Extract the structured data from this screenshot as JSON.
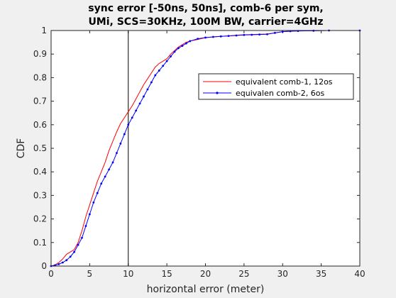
{
  "chart_data": {
    "type": "line",
    "title": "sync error [-50ns, 50ns], comb-6 per sym,",
    "subtitle": "UMi, SCS=30KHz, 100M BW, carrier=4GHz",
    "xlabel": "horizontal error (meter)",
    "ylabel": "CDF",
    "xlim": [
      0,
      40
    ],
    "ylim": [
      0,
      1
    ],
    "xticks": [
      "0",
      "5",
      "10",
      "15",
      "20",
      "25",
      "30",
      "35",
      "40"
    ],
    "yticks": [
      "0",
      "0.1",
      "0.2",
      "0.3",
      "0.4",
      "0.5",
      "0.6",
      "0.7",
      "0.8",
      "0.9",
      "1"
    ],
    "grid": false,
    "legend_position": "center-right",
    "vertical_reference_line": 10,
    "series": [
      {
        "name": "equivalent comb-1, 12os",
        "color": "#ff0000",
        "marker": "none",
        "points": [
          [
            0,
            0
          ],
          [
            0.5,
            0.005
          ],
          [
            1,
            0.015
          ],
          [
            1.5,
            0.03
          ],
          [
            2,
            0.05
          ],
          [
            2.5,
            0.06
          ],
          [
            3,
            0.07
          ],
          [
            3.5,
            0.1
          ],
          [
            4,
            0.15
          ],
          [
            4.5,
            0.21
          ],
          [
            5,
            0.26
          ],
          [
            5.5,
            0.31
          ],
          [
            6,
            0.36
          ],
          [
            6.5,
            0.4
          ],
          [
            7,
            0.44
          ],
          [
            7.5,
            0.49
          ],
          [
            8,
            0.53
          ],
          [
            8.5,
            0.57
          ],
          [
            9,
            0.605
          ],
          [
            9.5,
            0.63
          ],
          [
            10,
            0.655
          ],
          [
            10.5,
            0.68
          ],
          [
            11,
            0.71
          ],
          [
            11.5,
            0.74
          ],
          [
            12,
            0.77
          ],
          [
            12.5,
            0.795
          ],
          [
            13,
            0.82
          ],
          [
            13.5,
            0.845
          ],
          [
            14,
            0.86
          ],
          [
            14.5,
            0.87
          ],
          [
            15,
            0.88
          ],
          [
            15.5,
            0.9
          ],
          [
            16,
            0.915
          ],
          [
            16.5,
            0.93
          ],
          [
            17,
            0.94
          ],
          [
            17.5,
            0.95
          ],
          [
            18,
            0.955
          ],
          [
            19,
            0.962
          ],
          [
            20,
            0.97
          ],
          [
            21,
            0.973
          ],
          [
            22,
            0.975
          ],
          [
            23,
            0.977
          ],
          [
            24,
            0.98
          ],
          [
            25,
            0.982
          ],
          [
            26,
            0.983
          ],
          [
            27,
            0.984
          ],
          [
            28,
            0.985
          ],
          [
            29,
            0.99
          ],
          [
            30,
            0.995
          ],
          [
            31,
            0.997
          ],
          [
            32,
            0.998
          ],
          [
            34,
            0.999
          ],
          [
            36,
            1.0
          ],
          [
            40,
            1.0
          ]
        ]
      },
      {
        "name": "equivalen comb-2, 6os",
        "color": "#0000ff",
        "marker": "dot",
        "points": [
          [
            0,
            0
          ],
          [
            0.5,
            0.003
          ],
          [
            1,
            0.008
          ],
          [
            1.5,
            0.015
          ],
          [
            2,
            0.025
          ],
          [
            2.5,
            0.04
          ],
          [
            3,
            0.06
          ],
          [
            3.5,
            0.09
          ],
          [
            4,
            0.12
          ],
          [
            4.5,
            0.17
          ],
          [
            5,
            0.22
          ],
          [
            5.5,
            0.27
          ],
          [
            6,
            0.31
          ],
          [
            6.5,
            0.35
          ],
          [
            7,
            0.38
          ],
          [
            7.5,
            0.41
          ],
          [
            8,
            0.44
          ],
          [
            8.5,
            0.48
          ],
          [
            9,
            0.52
          ],
          [
            9.5,
            0.56
          ],
          [
            10,
            0.6
          ],
          [
            10.5,
            0.63
          ],
          [
            11,
            0.66
          ],
          [
            11.5,
            0.69
          ],
          [
            12,
            0.72
          ],
          [
            12.5,
            0.75
          ],
          [
            13,
            0.78
          ],
          [
            13.5,
            0.81
          ],
          [
            14,
            0.83
          ],
          [
            14.5,
            0.85
          ],
          [
            15,
            0.87
          ],
          [
            15.5,
            0.89
          ],
          [
            16,
            0.91
          ],
          [
            16.5,
            0.925
          ],
          [
            17,
            0.935
          ],
          [
            17.5,
            0.945
          ],
          [
            18,
            0.955
          ],
          [
            19,
            0.965
          ],
          [
            20,
            0.97
          ],
          [
            21,
            0.973
          ],
          [
            22,
            0.975
          ],
          [
            23,
            0.977
          ],
          [
            24,
            0.979
          ],
          [
            25,
            0.981
          ],
          [
            26,
            0.982
          ],
          [
            27,
            0.983
          ],
          [
            28,
            0.984
          ],
          [
            29,
            0.99
          ],
          [
            30,
            0.995
          ],
          [
            31,
            0.997
          ],
          [
            32,
            0.998
          ],
          [
            34,
            0.999
          ],
          [
            36,
            1.0
          ],
          [
            40,
            1.0
          ]
        ]
      }
    ]
  }
}
